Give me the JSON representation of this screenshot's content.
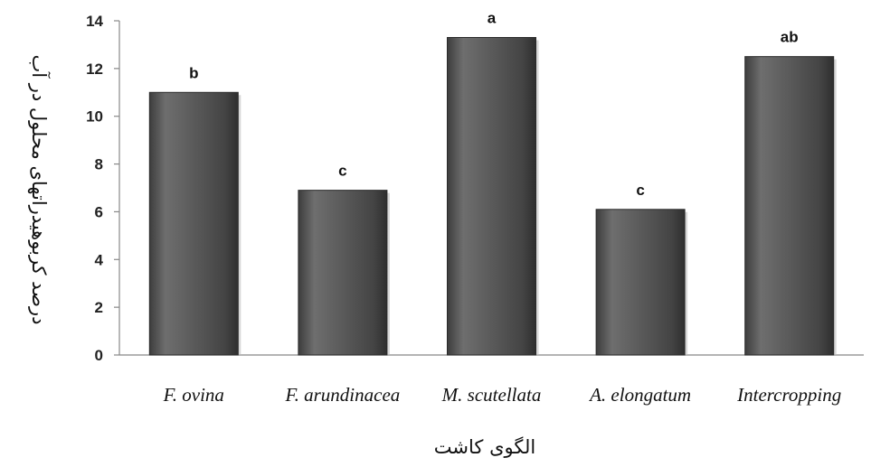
{
  "chart_data": {
    "type": "bar",
    "categories": [
      "F. ovina",
      "F. arundinacea",
      "M. scutellata",
      "A. elongatum",
      "Intercropping"
    ],
    "values": [
      11.0,
      6.9,
      13.3,
      6.1,
      12.5
    ],
    "data_labels": [
      "b",
      "c",
      "a",
      "c",
      "ab"
    ],
    "xlabel": "الگوی کاشت",
    "ylabel": "درصد کربوهیدراتهای محلول در آب",
    "ylim": [
      0,
      14
    ],
    "yticks": [
      0,
      2,
      4,
      6,
      8,
      10,
      12,
      14
    ],
    "grid": false,
    "bar_color": "#555555"
  }
}
